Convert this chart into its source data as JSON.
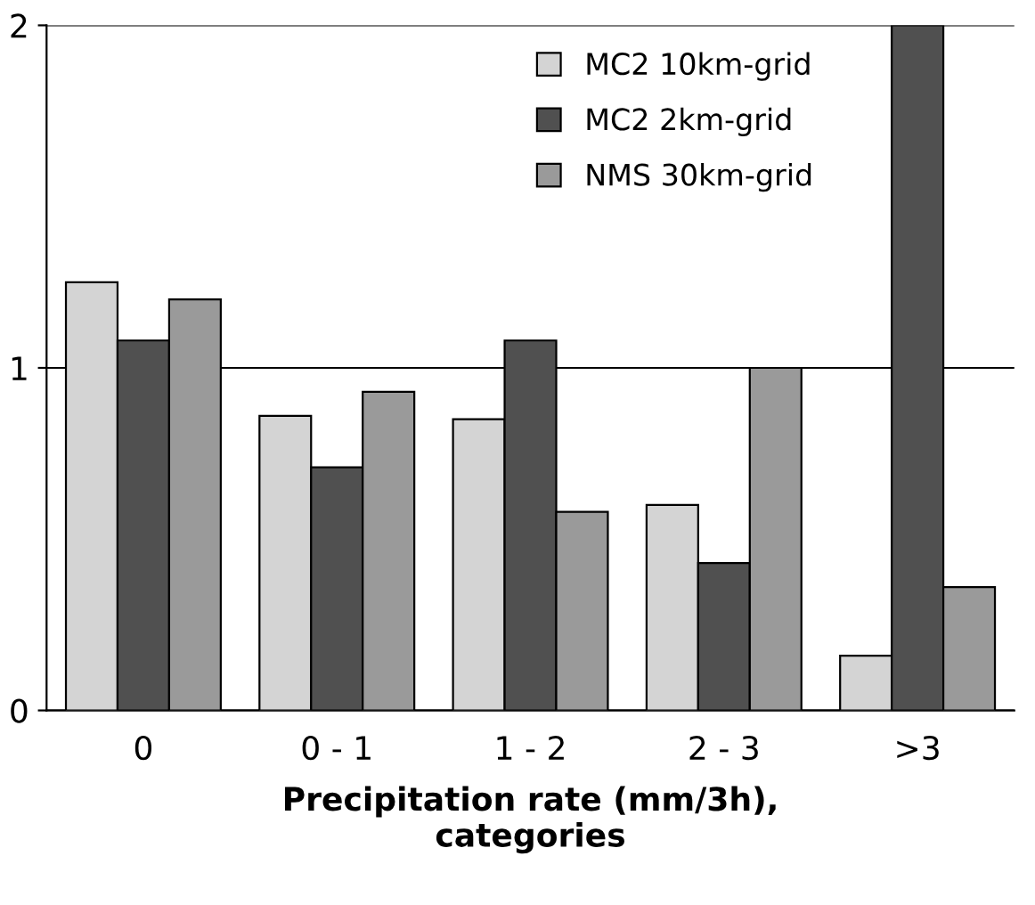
{
  "chart_data": {
    "type": "bar",
    "xlabel": "Precipitation rate (mm/3h),\ncategories",
    "categories": [
      "0",
      "0 - 1",
      "1 - 2",
      "2 - 3",
      ">3"
    ],
    "series": [
      {
        "name": "MC2 10km-grid",
        "color": "#d4d4d4",
        "values": [
          1.25,
          0.86,
          0.85,
          0.6,
          0.16
        ]
      },
      {
        "name": "MC2 2km-grid",
        "color": "#505050",
        "values": [
          1.08,
          0.71,
          1.08,
          0.43,
          2.0
        ]
      },
      {
        "name": "NMS 30km-grid",
        "color": "#9a9a9a",
        "values": [
          1.2,
          0.93,
          0.58,
          1.0,
          0.36
        ]
      }
    ],
    "ylim": [
      0,
      2
    ],
    "yticks": [
      0,
      1,
      2
    ],
    "grid": "y",
    "legend": "top right"
  }
}
